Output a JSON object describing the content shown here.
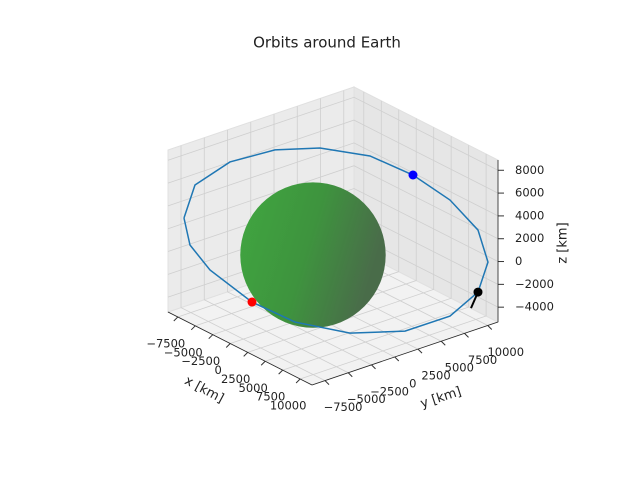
{
  "chart_data": {
    "type": "3d",
    "title": "Orbits around Earth",
    "xlabel": "x [km]",
    "ylabel": "y [km]",
    "zlabel": "z [km]",
    "xlim": [
      -8900,
      11700
    ],
    "ylim": [
      -8900,
      11100
    ],
    "zlim": [
      -5300,
      8900
    ],
    "xticks": [
      {
        "value": -7500,
        "label": "−7500"
      },
      {
        "value": -5000,
        "label": "−5000"
      },
      {
        "value": -2500,
        "label": "−2500"
      },
      0,
      2500,
      5000,
      7500,
      10000
    ],
    "yticks": [
      {
        "value": -7500,
        "label": "−7500"
      },
      {
        "value": -5000,
        "label": "−5000"
      },
      {
        "value": -2500,
        "label": "−2500"
      },
      0,
      2500,
      5000,
      7500,
      10000
    ],
    "zticks": [
      {
        "value": -4000,
        "label": "−4000"
      },
      {
        "value": -2000,
        "label": "−2000"
      },
      0,
      2000,
      4000,
      6000,
      8000
    ],
    "grid": true,
    "sphere": {
      "center": [
        0,
        0,
        0
      ],
      "radius": 6371,
      "color": "#3fa33f"
    },
    "series": [
      {
        "type": "line",
        "color": "#1f77b4",
        "x": [
          -7871,
          -8002,
          -6994,
          -4905,
          -2274,
          1947,
          6665,
          9160,
          11019,
          11220,
          10900,
          10463,
          8881,
          5677,
          1626,
          -1331,
          -4332,
          -5851,
          -7871
        ],
        "y": [
          -7955,
          -6674,
          -3669,
          -400,
          2461,
          4665,
          5743,
          7848,
          9461,
          10385,
          9550,
          6868,
          3219,
          -287,
          -3157,
          -5558,
          -7819,
          -8828,
          -7955
        ],
        "z": [
          3000,
          5500,
          7000,
          7800,
          8000,
          8000,
          7500,
          5500,
          3000,
          0,
          -2500,
          -4000,
          -4800,
          -5000,
          -4500,
          -3000,
          -500,
          1500,
          3000
        ]
      },
      {
        "type": "line",
        "color": "#000000",
        "x": [
          10900,
          9348
        ],
        "y": [
          9550,
          9964
        ],
        "z": [
          -2500,
          -4500
        ]
      },
      {
        "type": "scatter",
        "color": "#ff0000",
        "x": [
          -1331
        ],
        "y": [
          -5558
        ],
        "z": [
          -3000
        ]
      },
      {
        "type": "scatter",
        "color": "#0000ff",
        "x": [
          6665
        ],
        "y": [
          5743
        ],
        "z": [
          7500
        ]
      },
      {
        "type": "scatter",
        "color": "#000000",
        "x": [
          10900
        ],
        "y": [
          9550
        ],
        "z": [
          -2500
        ]
      }
    ]
  }
}
